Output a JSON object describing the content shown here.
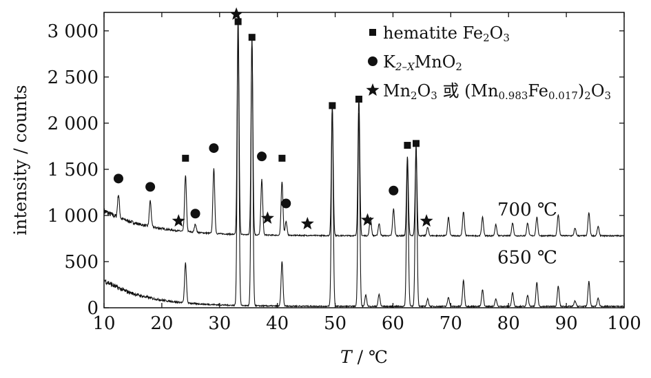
{
  "chart_data": {
    "type": "line",
    "xlabel": {
      "var": "T",
      "unit": " / ℃"
    },
    "ylabel": "intensity / counts",
    "xlim": [
      10,
      100
    ],
    "ylim": [
      0,
      3200
    ],
    "x_ticks": [
      10,
      20,
      30,
      40,
      50,
      60,
      70,
      80,
      90,
      100
    ],
    "x_tick_labels": [
      "10",
      "20",
      "30",
      "40",
      "50",
      "60",
      "70",
      "80",
      "90",
      "100"
    ],
    "y_ticks": [
      0,
      500,
      1000,
      1500,
      2000,
      2500,
      3000
    ],
    "y_tick_labels": [
      "0",
      "500",
      "1 000",
      "1 500",
      "2 000",
      "2 500",
      "3 000"
    ],
    "series": [
      {
        "name": "700 ℃",
        "baseline": 780,
        "background": {
          "start": 1050,
          "end": 780,
          "decay": 8
        },
        "peaks": [
          [
            12.5,
            250
          ],
          [
            18.0,
            280
          ],
          [
            24.1,
            610
          ],
          [
            25.8,
            90
          ],
          [
            29.0,
            700
          ],
          [
            33.2,
            2350
          ],
          [
            35.6,
            2100
          ],
          [
            37.3,
            600
          ],
          [
            40.8,
            580
          ],
          [
            41.5,
            150
          ],
          [
            49.5,
            1390
          ],
          [
            54.1,
            1500
          ],
          [
            56.1,
            200
          ],
          [
            57.6,
            130
          ],
          [
            60.1,
            290
          ],
          [
            62.5,
            850
          ],
          [
            64.0,
            920
          ],
          [
            66.0,
            90
          ],
          [
            69.6,
            200
          ],
          [
            72.2,
            260
          ],
          [
            75.5,
            200
          ],
          [
            77.8,
            120
          ],
          [
            80.7,
            140
          ],
          [
            83.3,
            140
          ],
          [
            84.9,
            200
          ],
          [
            88.6,
            230
          ],
          [
            91.5,
            80
          ],
          [
            93.9,
            250
          ],
          [
            95.5,
            100
          ]
        ]
      },
      {
        "name": "650 ℃",
        "baseline": 15,
        "background": {
          "start": 300,
          "end": 15,
          "decay": 7
        },
        "peaks": [
          [
            24.1,
            430
          ],
          [
            33.2,
            3020
          ],
          [
            35.6,
            2920
          ],
          [
            40.8,
            480
          ],
          [
            49.5,
            2180
          ],
          [
            54.1,
            2100
          ],
          [
            55.3,
            120
          ],
          [
            57.6,
            130
          ],
          [
            62.5,
            1620
          ],
          [
            64.0,
            1780
          ],
          [
            66.0,
            80
          ],
          [
            69.6,
            100
          ],
          [
            72.2,
            280
          ],
          [
            75.5,
            180
          ],
          [
            77.8,
            80
          ],
          [
            80.7,
            150
          ],
          [
            83.3,
            120
          ],
          [
            84.9,
            260
          ],
          [
            88.6,
            220
          ],
          [
            91.5,
            60
          ],
          [
            93.9,
            270
          ],
          [
            95.5,
            90
          ]
        ]
      }
    ],
    "series_labels": [
      {
        "text": "700 ℃",
        "x": 722,
        "y": 1000
      },
      {
        "text": "650 ℃",
        "x": 722,
        "y": 480
      }
    ],
    "markers": [
      {
        "kind": "square",
        "x": 24.1,
        "y": 1620
      },
      {
        "kind": "square",
        "x": 33.2,
        "y": 3100
      },
      {
        "kind": "square",
        "x": 35.6,
        "y": 2930
      },
      {
        "kind": "square",
        "x": 40.8,
        "y": 1620
      },
      {
        "kind": "square",
        "x": 49.5,
        "y": 2190
      },
      {
        "kind": "square",
        "x": 54.1,
        "y": 2260
      },
      {
        "kind": "square",
        "x": 62.5,
        "y": 1760
      },
      {
        "kind": "square",
        "x": 64.0,
        "y": 1780
      },
      {
        "kind": "circle",
        "x": 12.5,
        "y": 1400
      },
      {
        "kind": "circle",
        "x": 18.0,
        "y": 1310
      },
      {
        "kind": "circle",
        "x": 25.8,
        "y": 1020
      },
      {
        "kind": "circle",
        "x": 29.0,
        "y": 1730
      },
      {
        "kind": "circle",
        "x": 37.3,
        "y": 1640
      },
      {
        "kind": "circle",
        "x": 41.5,
        "y": 1130
      },
      {
        "kind": "circle",
        "x": 60.1,
        "y": 1270
      },
      {
        "kind": "star",
        "x": 22.9,
        "y": 940
      },
      {
        "kind": "star",
        "x": 32.9,
        "y": 3180
      },
      {
        "kind": "star",
        "x": 38.3,
        "y": 970
      },
      {
        "kind": "star",
        "x": 45.2,
        "y": 910
      },
      {
        "kind": "star",
        "x": 55.6,
        "y": 950
      },
      {
        "kind": "star",
        "x": 65.8,
        "y": 940
      }
    ],
    "legend": [
      {
        "marker": "square",
        "parts": [
          [
            "hematite Fe",
            ""
          ],
          [
            "2",
            "sub"
          ],
          [
            "O",
            ""
          ],
          [
            "3",
            "sub"
          ]
        ]
      },
      {
        "marker": "circle",
        "parts": [
          [
            "K",
            ""
          ],
          [
            "2–X",
            "subi"
          ],
          [
            "MnO",
            ""
          ],
          [
            "2",
            "sub"
          ]
        ]
      },
      {
        "marker": "star",
        "parts": [
          [
            "Mn",
            ""
          ],
          [
            "2",
            "sub"
          ],
          [
            "O",
            ""
          ],
          [
            "3",
            "sub"
          ],
          [
            " 或 (Mn",
            ""
          ],
          [
            "0.983",
            "sub"
          ],
          [
            "Fe",
            ""
          ],
          [
            "0.017",
            "sub"
          ],
          [
            ")",
            ""
          ],
          [
            "2",
            "sub"
          ],
          [
            "O",
            ""
          ],
          [
            "3",
            "sub"
          ]
        ]
      }
    ],
    "legend_placement": "top-right",
    "grid": false
  }
}
